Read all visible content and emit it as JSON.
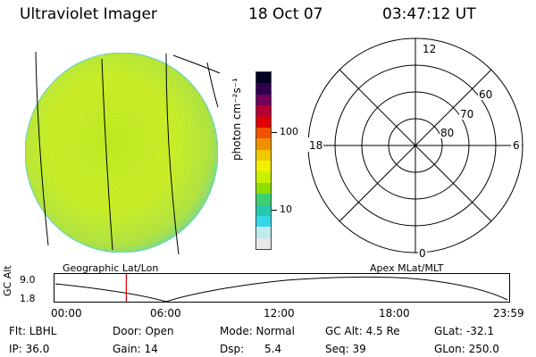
{
  "header": {
    "title": "Ultraviolet Imager",
    "date": "18 Oct 07",
    "time": "03:47:12 UT"
  },
  "colorbar": {
    "unit_label": "photon cm⁻²s⁻¹",
    "tick_100": "100",
    "tick_10": "10",
    "colors": [
      "#e8e8e8",
      "#bfeaf0",
      "#33d8e6",
      "#27c8b0",
      "#3cd070",
      "#8ce000",
      "#c8f000",
      "#f0f000",
      "#f0c800",
      "#f09000",
      "#f05000",
      "#e00000",
      "#b80030",
      "#70005a",
      "#300050",
      "#000020"
    ]
  },
  "left_map": {
    "label": "Geographic Lat/Lon",
    "disk_color": "#c8ee1e"
  },
  "polar_plot": {
    "label": "Apex MLat/MLT",
    "mlt_labels": {
      "top": "12",
      "bottom": "0",
      "left": "18",
      "right": "6"
    },
    "lat_labels": [
      "60",
      "70",
      "80"
    ]
  },
  "altitude_plot": {
    "ylabel": "GC Alt",
    "ytick_top": "9.0",
    "ytick_bottom": "1.8",
    "xticks": [
      "00:00",
      "06:00",
      "12:00",
      "18:00",
      "23:59"
    ],
    "marker_hours": 3.79,
    "marker_color": "#e00000"
  },
  "footer": {
    "row1": {
      "flt": "Flt: LBHL",
      "door": "Door: Open",
      "mode": "Mode: Normal",
      "gcalt": "GC Alt: 4.5 Re",
      "glat": "GLat: -32.1"
    },
    "row2": {
      "ip": "IP: 36.0",
      "gain": "Gain: 14",
      "dsp": "Dsp:      5.4",
      "seq": "Seq: 39",
      "glon": "GLon: 250.0"
    }
  }
}
